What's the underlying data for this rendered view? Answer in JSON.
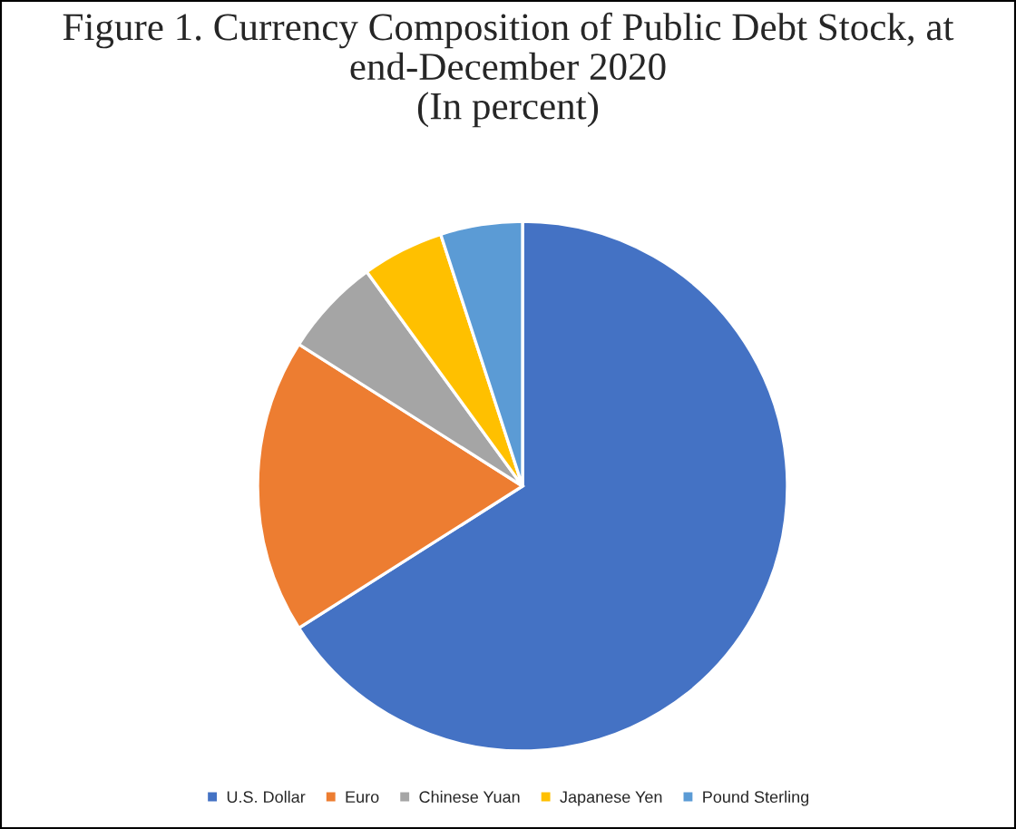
{
  "chart_data": {
    "type": "pie",
    "title": "Figure 1. Currency Composition of Public Debt Stock, at end-December 2020\n(In percent)",
    "categories": [
      "U.S. Dollar",
      "Euro",
      "Chinese Yuan",
      "Japanese Yen",
      "Pound Sterling"
    ],
    "values": [
      66,
      18,
      6,
      5,
      5
    ],
    "colors": [
      "#4472c4",
      "#ed7d31",
      "#a5a5a5",
      "#ffc000",
      "#5b9bd5"
    ],
    "legend": "bottom"
  }
}
